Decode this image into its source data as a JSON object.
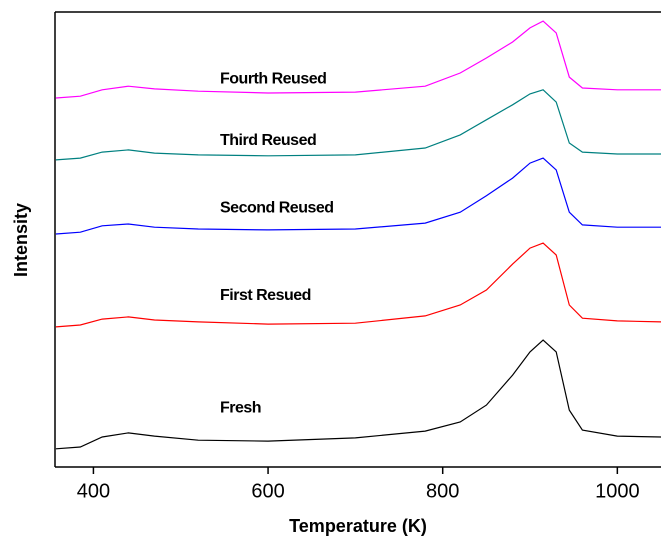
{
  "chart_data": {
    "type": "line",
    "x_label": "Temperature (K)",
    "y_label": "Intensity",
    "x": [
      357,
      385,
      410,
      440,
      470,
      520,
      600,
      700,
      780,
      820,
      850,
      880,
      900,
      915,
      930,
      945,
      960,
      1000,
      1050
    ],
    "series": [
      {
        "name": "Fresh",
        "color": "#000000",
        "values": [
          4.0,
          4.4,
          6.6,
          7.5,
          6.8,
          5.9,
          5.7,
          6.4,
          7.9,
          9.9,
          13.6,
          20.2,
          25.3,
          27.9,
          25.3,
          12.5,
          8.1,
          6.8,
          6.6
        ]
      },
      {
        "name": "First Resued",
        "color": "#ff0000",
        "values": [
          30.8,
          31.2,
          32.5,
          33.0,
          32.3,
          31.9,
          31.4,
          31.6,
          33.2,
          35.6,
          38.9,
          44.6,
          48.1,
          49.2,
          46.6,
          35.6,
          32.7,
          32.1,
          31.9
        ]
      },
      {
        "name": "Second Reused",
        "color": "#0000ff",
        "values": [
          51.2,
          51.6,
          53.0,
          53.4,
          52.7,
          52.3,
          52.1,
          52.3,
          53.6,
          56.0,
          59.6,
          63.5,
          66.8,
          67.9,
          65.3,
          56.0,
          53.2,
          52.7,
          52.7
        ]
      },
      {
        "name": "Third Reused",
        "color": "#008080",
        "values": [
          67.5,
          67.9,
          69.2,
          69.7,
          69.0,
          68.6,
          68.4,
          68.6,
          70.1,
          73.0,
          76.3,
          79.6,
          82.0,
          82.9,
          80.2,
          71.2,
          69.2,
          68.8,
          68.8
        ]
      },
      {
        "name": "Fourth Reused",
        "color": "#ff00ff",
        "values": [
          81.1,
          81.5,
          82.9,
          83.7,
          83.1,
          82.6,
          82.2,
          82.4,
          83.7,
          86.6,
          89.9,
          93.4,
          96.5,
          98.0,
          95.4,
          85.7,
          83.3,
          82.9,
          82.9
        ]
      }
    ],
    "xlim": [
      356,
      1050
    ],
    "xticks": [
      400,
      600,
      800,
      1000
    ],
    "ylim": [
      0,
      100
    ]
  }
}
